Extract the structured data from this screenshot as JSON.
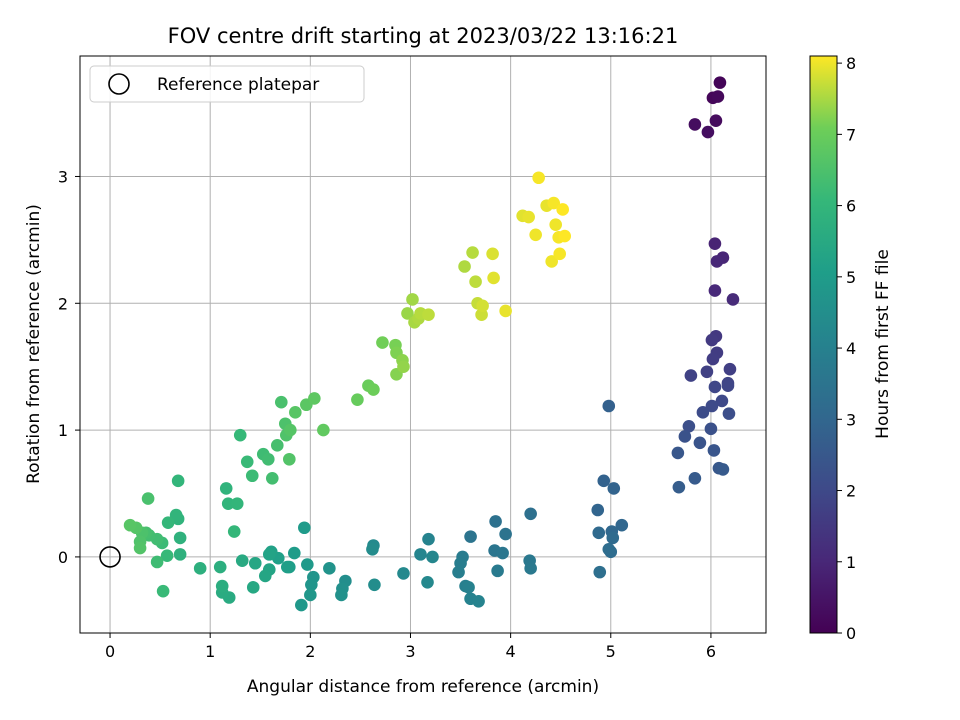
{
  "chart_data": {
    "type": "scatter",
    "title": "FOV centre drift starting at 2023/03/22 13:16:21",
    "xlabel": "Angular distance from reference (arcmin)",
    "ylabel": "Rotation from reference (arcmin)",
    "xlim": [
      -0.3,
      6.55
    ],
    "ylim": [
      -0.6,
      3.95
    ],
    "x_ticks": [
      0,
      1,
      2,
      3,
      4,
      5,
      6
    ],
    "y_ticks": [
      0,
      1,
      2,
      3
    ],
    "grid": true,
    "legend": {
      "placement": "top-left",
      "entries": [
        "Reference platepar"
      ]
    },
    "reference_point": {
      "label": "Reference platepar",
      "x": 0,
      "y": 0,
      "marker": "open-circle"
    },
    "colorbar": {
      "label": "Hours from first FF file",
      "colormap": "viridis",
      "range": [
        0,
        8.1
      ],
      "ticks": [
        0,
        1,
        2,
        3,
        4,
        5,
        6,
        7,
        8
      ]
    },
    "points": [
      {
        "x": 6.09,
        "y": 3.74,
        "h": 0.1
      },
      {
        "x": 6.02,
        "y": 3.62,
        "h": 0.15
      },
      {
        "x": 6.07,
        "y": 3.63,
        "h": 0.2
      },
      {
        "x": 6.05,
        "y": 3.44,
        "h": 0.25
      },
      {
        "x": 5.84,
        "y": 3.41,
        "h": 0.3
      },
      {
        "x": 5.97,
        "y": 3.35,
        "h": 0.35
      },
      {
        "x": 6.04,
        "y": 2.47,
        "h": 0.9
      },
      {
        "x": 6.12,
        "y": 2.36,
        "h": 0.95
      },
      {
        "x": 6.06,
        "y": 2.33,
        "h": 1.0
      },
      {
        "x": 6.04,
        "y": 2.1,
        "h": 1.05
      },
      {
        "x": 6.22,
        "y": 2.03,
        "h": 1.1
      },
      {
        "x": 6.05,
        "y": 1.74,
        "h": 1.5
      },
      {
        "x": 6.01,
        "y": 1.71,
        "h": 1.55
      },
      {
        "x": 6.06,
        "y": 1.61,
        "h": 1.6
      },
      {
        "x": 6.02,
        "y": 1.56,
        "h": 1.65
      },
      {
        "x": 6.19,
        "y": 1.48,
        "h": 1.7
      },
      {
        "x": 5.96,
        "y": 1.46,
        "h": 1.75
      },
      {
        "x": 5.8,
        "y": 1.43,
        "h": 1.8
      },
      {
        "x": 6.17,
        "y": 1.37,
        "h": 1.85
      },
      {
        "x": 6.17,
        "y": 1.35,
        "h": 1.9
      },
      {
        "x": 6.04,
        "y": 1.34,
        "h": 1.95
      },
      {
        "x": 6.11,
        "y": 1.23,
        "h": 2.0
      },
      {
        "x": 6.01,
        "y": 1.19,
        "h": 2.05
      },
      {
        "x": 5.92,
        "y": 1.14,
        "h": 2.1
      },
      {
        "x": 6.18,
        "y": 1.13,
        "h": 2.15
      },
      {
        "x": 5.78,
        "y": 1.03,
        "h": 2.2
      },
      {
        "x": 6.0,
        "y": 1.01,
        "h": 2.25
      },
      {
        "x": 5.74,
        "y": 0.95,
        "h": 2.3
      },
      {
        "x": 5.89,
        "y": 0.9,
        "h": 2.35
      },
      {
        "x": 6.03,
        "y": 0.84,
        "h": 2.4
      },
      {
        "x": 5.67,
        "y": 0.82,
        "h": 2.45
      },
      {
        "x": 6.08,
        "y": 0.7,
        "h": 2.5
      },
      {
        "x": 6.12,
        "y": 0.69,
        "h": 2.55
      },
      {
        "x": 5.84,
        "y": 0.62,
        "h": 2.6
      },
      {
        "x": 5.68,
        "y": 0.55,
        "h": 2.65
      },
      {
        "x": 4.98,
        "y": 1.19,
        "h": 2.8
      },
      {
        "x": 4.93,
        "y": 0.6,
        "h": 2.85
      },
      {
        "x": 5.03,
        "y": 0.54,
        "h": 2.9
      },
      {
        "x": 4.87,
        "y": 0.37,
        "h": 2.95
      },
      {
        "x": 5.11,
        "y": 0.25,
        "h": 3.0
      },
      {
        "x": 5.01,
        "y": 0.2,
        "h": 3.05
      },
      {
        "x": 4.88,
        "y": 0.19,
        "h": 3.1
      },
      {
        "x": 5.02,
        "y": 0.15,
        "h": 3.15
      },
      {
        "x": 5.0,
        "y": 0.04,
        "h": 3.2
      },
      {
        "x": 4.98,
        "y": 0.06,
        "h": 3.25
      },
      {
        "x": 4.89,
        "y": -0.12,
        "h": 3.3
      },
      {
        "x": 4.2,
        "y": 0.34,
        "h": 3.35
      },
      {
        "x": 3.85,
        "y": 0.28,
        "h": 3.4
      },
      {
        "x": 3.95,
        "y": 0.18,
        "h": 3.45
      },
      {
        "x": 3.6,
        "y": 0.16,
        "h": 3.5
      },
      {
        "x": 3.84,
        "y": 0.05,
        "h": 3.55
      },
      {
        "x": 3.92,
        "y": 0.03,
        "h": 3.6
      },
      {
        "x": 4.19,
        "y": -0.03,
        "h": 3.65
      },
      {
        "x": 4.2,
        "y": -0.09,
        "h": 3.7
      },
      {
        "x": 3.87,
        "y": -0.11,
        "h": 3.75
      },
      {
        "x": 3.52,
        "y": 0.0,
        "h": 3.8
      },
      {
        "x": 3.5,
        "y": -0.05,
        "h": 3.85
      },
      {
        "x": 3.48,
        "y": -0.12,
        "h": 3.9
      },
      {
        "x": 3.55,
        "y": -0.23,
        "h": 3.95
      },
      {
        "x": 3.58,
        "y": -0.24,
        "h": 4.0
      },
      {
        "x": 3.6,
        "y": -0.33,
        "h": 4.05
      },
      {
        "x": 3.68,
        "y": -0.35,
        "h": 4.1
      },
      {
        "x": 3.18,
        "y": 0.14,
        "h": 4.1
      },
      {
        "x": 3.1,
        "y": 0.02,
        "h": 4.15
      },
      {
        "x": 3.22,
        "y": 0.0,
        "h": 4.2
      },
      {
        "x": 3.17,
        "y": -0.2,
        "h": 4.25
      },
      {
        "x": 2.93,
        "y": -0.13,
        "h": 4.3
      },
      {
        "x": 2.63,
        "y": 0.09,
        "h": 4.35
      },
      {
        "x": 2.62,
        "y": 0.06,
        "h": 4.4
      },
      {
        "x": 2.64,
        "y": -0.22,
        "h": 4.45
      },
      {
        "x": 2.35,
        "y": -0.19,
        "h": 4.5
      },
      {
        "x": 2.32,
        "y": -0.25,
        "h": 4.55
      },
      {
        "x": 2.31,
        "y": -0.3,
        "h": 4.6
      },
      {
        "x": 2.19,
        "y": -0.09,
        "h": 4.65
      },
      {
        "x": 2.03,
        "y": -0.16,
        "h": 4.7
      },
      {
        "x": 2.01,
        "y": -0.22,
        "h": 4.75
      },
      {
        "x": 2.0,
        "y": -0.3,
        "h": 4.8
      },
      {
        "x": 1.91,
        "y": -0.38,
        "h": 4.85
      },
      {
        "x": 1.97,
        "y": -0.06,
        "h": 4.9
      },
      {
        "x": 1.94,
        "y": 0.23,
        "h": 4.95
      },
      {
        "x": 1.84,
        "y": 0.03,
        "h": 5.0
      },
      {
        "x": 1.79,
        "y": -0.08,
        "h": 5.05
      },
      {
        "x": 1.77,
        "y": -0.08,
        "h": 5.1
      },
      {
        "x": 1.68,
        "y": -0.01,
        "h": 5.15
      },
      {
        "x": 1.61,
        "y": 0.04,
        "h": 5.2
      },
      {
        "x": 1.59,
        "y": 0.02,
        "h": 5.25
      },
      {
        "x": 1.59,
        "y": -0.1,
        "h": 5.3
      },
      {
        "x": 1.55,
        "y": -0.15,
        "h": 5.35
      },
      {
        "x": 1.45,
        "y": -0.05,
        "h": 5.4
      },
      {
        "x": 1.43,
        "y": -0.24,
        "h": 5.45
      },
      {
        "x": 1.32,
        "y": -0.03,
        "h": 5.5
      },
      {
        "x": 1.19,
        "y": -0.32,
        "h": 5.55
      },
      {
        "x": 1.12,
        "y": -0.28,
        "h": 5.6
      },
      {
        "x": 1.12,
        "y": -0.23,
        "h": 5.65
      },
      {
        "x": 1.1,
        "y": -0.08,
        "h": 5.7
      },
      {
        "x": 0.9,
        "y": -0.09,
        "h": 5.75
      },
      {
        "x": 0.7,
        "y": 0.02,
        "h": 5.8
      },
      {
        "x": 0.7,
        "y": 0.15,
        "h": 5.85
      },
      {
        "x": 0.68,
        "y": 0.3,
        "h": 5.9
      },
      {
        "x": 0.66,
        "y": 0.33,
        "h": 5.95
      },
      {
        "x": 0.68,
        "y": 0.6,
        "h": 6.0
      },
      {
        "x": 0.58,
        "y": 0.27,
        "h": 6.05
      },
      {
        "x": 0.57,
        "y": 0.01,
        "h": 6.1
      },
      {
        "x": 0.53,
        "y": -0.27,
        "h": 6.15
      },
      {
        "x": 0.52,
        "y": 0.11,
        "h": 6.2
      },
      {
        "x": 0.47,
        "y": -0.04,
        "h": 6.25
      },
      {
        "x": 0.47,
        "y": 0.14,
        "h": 6.3
      },
      {
        "x": 0.39,
        "y": 0.17,
        "h": 6.35
      },
      {
        "x": 0.36,
        "y": 0.19,
        "h": 6.4
      },
      {
        "x": 0.38,
        "y": 0.46,
        "h": 6.45
      },
      {
        "x": 0.32,
        "y": 0.19,
        "h": 6.5
      },
      {
        "x": 0.3,
        "y": 0.12,
        "h": 6.55
      },
      {
        "x": 0.3,
        "y": 0.07,
        "h": 6.6
      },
      {
        "x": 0.26,
        "y": 0.23,
        "h": 6.65
      },
      {
        "x": 0.2,
        "y": 0.25,
        "h": 6.7
      },
      {
        "x": 1.16,
        "y": 0.54,
        "h": 5.9
      },
      {
        "x": 1.18,
        "y": 0.42,
        "h": 5.95
      },
      {
        "x": 1.27,
        "y": 0.42,
        "h": 6.0
      },
      {
        "x": 1.24,
        "y": 0.2,
        "h": 6.05
      },
      {
        "x": 1.3,
        "y": 0.96,
        "h": 6.1
      },
      {
        "x": 1.37,
        "y": 0.75,
        "h": 6.15
      },
      {
        "x": 1.42,
        "y": 0.64,
        "h": 6.2
      },
      {
        "x": 1.53,
        "y": 0.81,
        "h": 6.25
      },
      {
        "x": 1.58,
        "y": 0.77,
        "h": 6.3
      },
      {
        "x": 1.62,
        "y": 0.62,
        "h": 6.35
      },
      {
        "x": 1.67,
        "y": 0.88,
        "h": 6.4
      },
      {
        "x": 1.71,
        "y": 1.22,
        "h": 6.45
      },
      {
        "x": 1.75,
        "y": 1.05,
        "h": 6.5
      },
      {
        "x": 1.76,
        "y": 0.96,
        "h": 6.55
      },
      {
        "x": 1.79,
        "y": 0.77,
        "h": 6.6
      },
      {
        "x": 1.8,
        "y": 1.0,
        "h": 6.65
      },
      {
        "x": 1.85,
        "y": 1.14,
        "h": 6.7
      },
      {
        "x": 1.96,
        "y": 1.2,
        "h": 6.75
      },
      {
        "x": 2.04,
        "y": 1.25,
        "h": 6.8
      },
      {
        "x": 2.13,
        "y": 1.0,
        "h": 6.85
      },
      {
        "x": 2.47,
        "y": 1.24,
        "h": 6.95
      },
      {
        "x": 2.58,
        "y": 1.35,
        "h": 7.0
      },
      {
        "x": 2.63,
        "y": 1.32,
        "h": 7.05
      },
      {
        "x": 2.72,
        "y": 1.69,
        "h": 7.1
      },
      {
        "x": 2.85,
        "y": 1.67,
        "h": 7.15
      },
      {
        "x": 2.86,
        "y": 1.61,
        "h": 7.2
      },
      {
        "x": 2.86,
        "y": 1.44,
        "h": 7.25
      },
      {
        "x": 2.92,
        "y": 1.55,
        "h": 7.3
      },
      {
        "x": 2.93,
        "y": 1.5,
        "h": 7.35
      },
      {
        "x": 2.97,
        "y": 1.92,
        "h": 7.4
      },
      {
        "x": 3.02,
        "y": 2.03,
        "h": 7.45
      },
      {
        "x": 3.04,
        "y": 1.85,
        "h": 7.5
      },
      {
        "x": 3.08,
        "y": 1.88,
        "h": 7.55
      },
      {
        "x": 3.1,
        "y": 1.92,
        "h": 7.6
      },
      {
        "x": 3.18,
        "y": 1.91,
        "h": 7.65
      },
      {
        "x": 3.54,
        "y": 2.29,
        "h": 7.55
      },
      {
        "x": 3.62,
        "y": 2.4,
        "h": 7.6
      },
      {
        "x": 3.65,
        "y": 2.17,
        "h": 7.65
      },
      {
        "x": 3.67,
        "y": 2.0,
        "h": 7.7
      },
      {
        "x": 3.71,
        "y": 1.91,
        "h": 7.75
      },
      {
        "x": 3.72,
        "y": 1.98,
        "h": 7.8
      },
      {
        "x": 3.82,
        "y": 2.39,
        "h": 7.85
      },
      {
        "x": 3.83,
        "y": 2.2,
        "h": 7.9
      },
      {
        "x": 3.95,
        "y": 1.94,
        "h": 7.95
      },
      {
        "x": 4.12,
        "y": 2.69,
        "h": 7.9
      },
      {
        "x": 4.18,
        "y": 2.68,
        "h": 7.95
      },
      {
        "x": 4.25,
        "y": 2.54,
        "h": 8.0
      },
      {
        "x": 4.28,
        "y": 2.99,
        "h": 8.05
      },
      {
        "x": 4.36,
        "y": 2.77,
        "h": 7.95
      },
      {
        "x": 4.41,
        "y": 2.33,
        "h": 8.0
      },
      {
        "x": 4.43,
        "y": 2.79,
        "h": 8.05
      },
      {
        "x": 4.45,
        "y": 2.62,
        "h": 8.0
      },
      {
        "x": 4.48,
        "y": 2.52,
        "h": 8.05
      },
      {
        "x": 4.49,
        "y": 2.39,
        "h": 8.05
      },
      {
        "x": 4.52,
        "y": 2.74,
        "h": 8.1
      },
      {
        "x": 4.54,
        "y": 2.53,
        "h": 8.1
      }
    ]
  }
}
